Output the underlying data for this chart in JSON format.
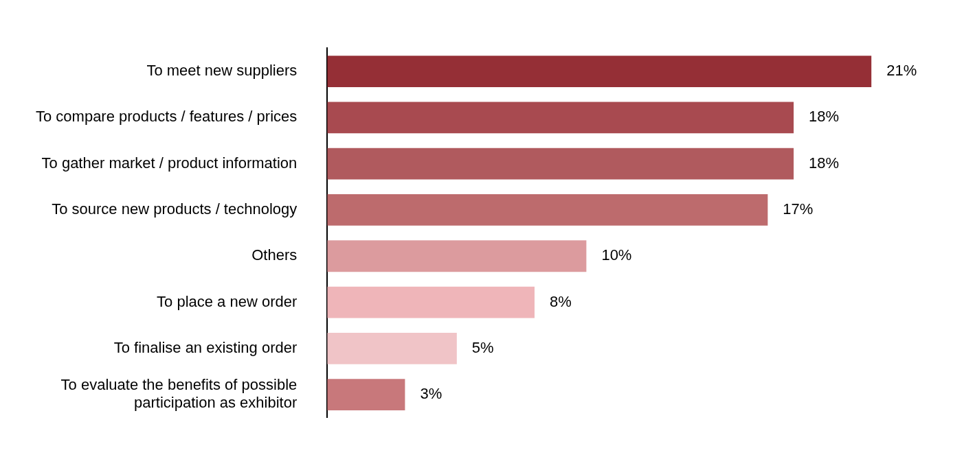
{
  "chart_data": {
    "type": "bar",
    "orientation": "horizontal",
    "categories": [
      "To meet new suppliers",
      "To compare products / features / prices",
      "To gather market / product information",
      "To source new products / technology",
      "Others",
      "To place a new order",
      "To finalise an existing order",
      "To evaluate the benefits of possible participation as exhibitor"
    ],
    "values": [
      21,
      18,
      18,
      17,
      10,
      8,
      5,
      3
    ],
    "value_labels": [
      "21%",
      "18%",
      "18%",
      "17%",
      "10%",
      "8%",
      "5%",
      "3%"
    ],
    "colors": [
      "#952f36",
      "#a84a50",
      "#b05a5e",
      "#bd6b6d",
      "#dc9b9e",
      "#efb5b9",
      "#f0c4c7",
      "#c8787b"
    ],
    "legend": false,
    "tick_labels": "y"
  }
}
